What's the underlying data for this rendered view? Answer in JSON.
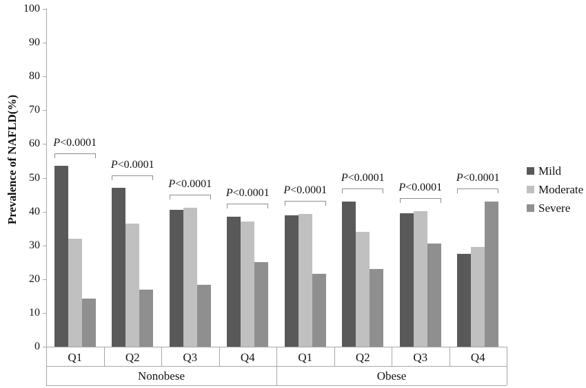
{
  "chart_data": {
    "type": "bar",
    "title": "",
    "ylabel": "Prevalence of NAFLD(%)",
    "ylim": [
      0,
      100
    ],
    "ytick_step": 10,
    "ytick_labels": [
      "0",
      "10",
      "20",
      "30",
      "40",
      "50",
      "60",
      "70",
      "80",
      "90",
      "100"
    ],
    "grid": false,
    "legend_position": "right",
    "categories": [
      "Q1",
      "Q2",
      "Q3",
      "Q4",
      "Q1",
      "Q2",
      "Q3",
      "Q4"
    ],
    "group_labels": [
      "Nonobese",
      "Obese"
    ],
    "categories_per_group_label": 4,
    "series": [
      {
        "name": "Mild",
        "color": "#595959",
        "values": [
          53.5,
          47.0,
          40.5,
          38.5,
          39.0,
          43.0,
          39.5,
          27.5
        ]
      },
      {
        "name": "Moderate",
        "color": "#c0c0c0",
        "values": [
          32.0,
          36.5,
          41.2,
          37.0,
          39.3,
          34.0,
          40.2,
          29.5
        ]
      },
      {
        "name": "Severe",
        "color": "#8f8f8f",
        "values": [
          14.3,
          17.0,
          18.3,
          25.0,
          21.5,
          23.0,
          30.5,
          43.0
        ]
      }
    ],
    "p_value_label": "P<0.0001",
    "p_bracket_on_each_quartile_group": true,
    "axis_color": "#a6a6a6"
  }
}
